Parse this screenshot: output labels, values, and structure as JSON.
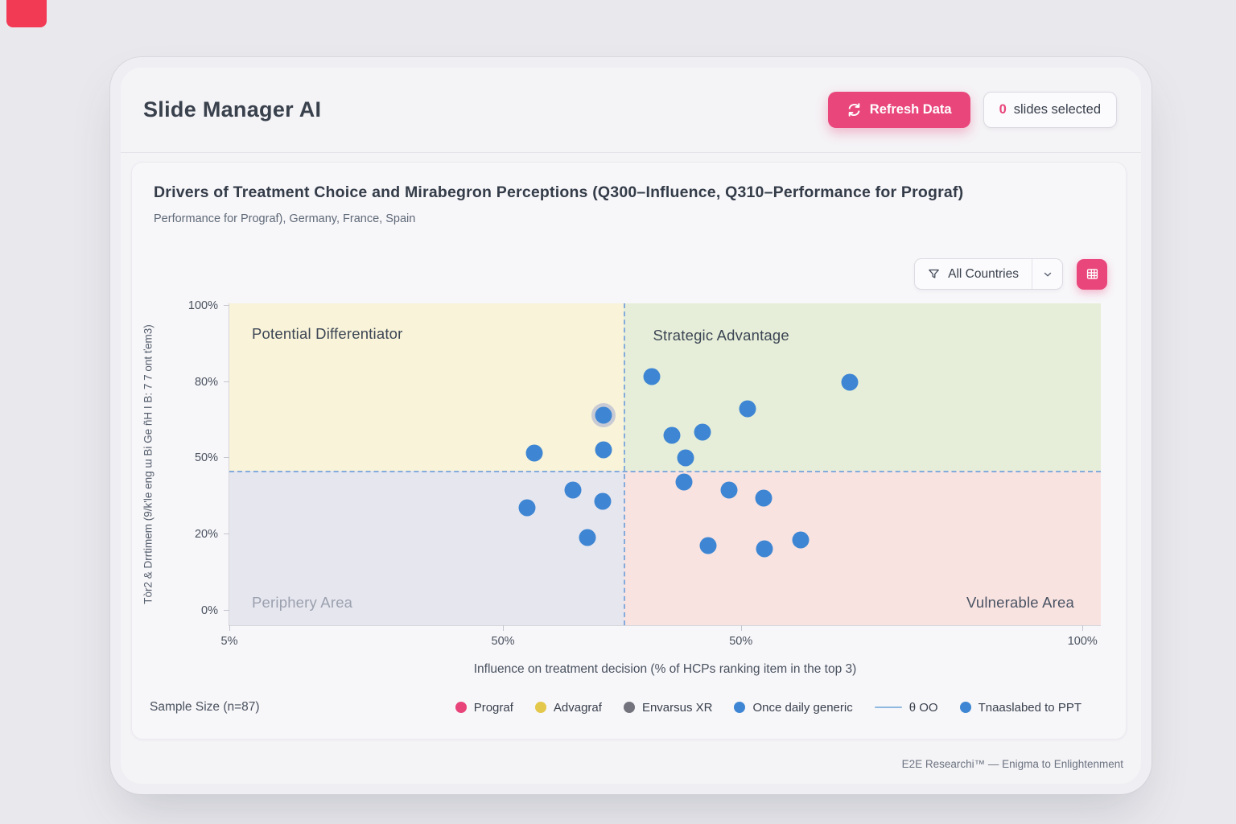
{
  "page": {
    "corner_accent_color": "#f23a55"
  },
  "header": {
    "title": "Slide Manager AI",
    "refresh_button": {
      "label": "Refresh Data",
      "color": "#e9477c"
    },
    "slides_badge": {
      "count": "0",
      "label": "slides selected",
      "count_color": "#e8447a"
    }
  },
  "chart_card": {
    "title": "Drivers of Treatment Choice and Mirabegron Perceptions (Q300–Influence, Q310–Performance for Prograf)",
    "subtitle": "Performance for Prograf), Germany, France, Spain",
    "filter": {
      "label": "All Countries"
    },
    "sample_size": "Sample Size (n=87)"
  },
  "chart_data": {
    "type": "scatter",
    "title": "Drivers of Treatment Choice and Mirabegron Perceptions (Q300–Influence, Q310–Performance for Prograf)",
    "xlabel": "Influence on treatment decision (% of HCPs ranking item in the top 3)",
    "ylabel": "Tòr2 & Drrtimem (9/k'le eng ɯ Bi Ge ñH I B: 7 7 ont ťem3)",
    "x_ticks": [
      {
        "label": "5%",
        "pos_pct": 0
      },
      {
        "label": "50%",
        "pos_pct": 31.4
      },
      {
        "label": "50%",
        "pos_pct": 58.7
      },
      {
        "label": "100%",
        "pos_pct": 97.9
      }
    ],
    "y_ticks": [
      {
        "label": "100%",
        "pos_pct": 99.3
      },
      {
        "label": "80%",
        "pos_pct": 75.6
      },
      {
        "label": "50%",
        "pos_pct": 51.9
      },
      {
        "label": "20%",
        "pos_pct": 28.2
      },
      {
        "label": "0%",
        "pos_pct": 4.5
      }
    ],
    "dividers": {
      "x_pct": 45.2,
      "y_pct_from_bottom": 48.1,
      "color": "#84abdb",
      "style": "dashed"
    },
    "quadrants": [
      {
        "label": "Potential Differentiator",
        "color": "#f8f3d9",
        "label_color": "#3d4654",
        "corner": "top-left"
      },
      {
        "label": "Strategic Advantage",
        "color": "#e6eed9",
        "label_color": "#3d4654",
        "corner": "top-right"
      },
      {
        "label": "Periphery Area",
        "color": "#e6e6ef",
        "label_color": "#9ba1ae",
        "corner": "bottom-left"
      },
      {
        "label": "Vulnerable Area",
        "color": "#f8e3e1",
        "label_color": "#4a5363",
        "corner": "bottom-right"
      }
    ],
    "point_color": "#3e86d3",
    "point_ring_color": "#c9cbd4",
    "points": [
      {
        "x_pct": 48.5,
        "y_pct": 77.3
      },
      {
        "x_pct": 71.2,
        "y_pct": 75.6
      },
      {
        "x_pct": 59.5,
        "y_pct": 67.3
      },
      {
        "x_pct": 42.9,
        "y_pct": 65.3,
        "ring": true
      },
      {
        "x_pct": 50.8,
        "y_pct": 59.1
      },
      {
        "x_pct": 54.3,
        "y_pct": 60.1
      },
      {
        "x_pct": 35.0,
        "y_pct": 53.6
      },
      {
        "x_pct": 42.9,
        "y_pct": 54.4
      },
      {
        "x_pct": 52.4,
        "y_pct": 52.1
      },
      {
        "x_pct": 52.2,
        "y_pct": 44.4
      },
      {
        "x_pct": 39.4,
        "y_pct": 42.1
      },
      {
        "x_pct": 57.3,
        "y_pct": 42.1
      },
      {
        "x_pct": 34.2,
        "y_pct": 36.4
      },
      {
        "x_pct": 42.8,
        "y_pct": 38.4
      },
      {
        "x_pct": 61.3,
        "y_pct": 39.4
      },
      {
        "x_pct": 41.1,
        "y_pct": 27.2
      },
      {
        "x_pct": 54.9,
        "y_pct": 24.7
      },
      {
        "x_pct": 61.4,
        "y_pct": 23.7
      },
      {
        "x_pct": 65.6,
        "y_pct": 26.4
      }
    ],
    "legend": [
      {
        "swatch": "dot",
        "color": "#e8447a",
        "label": "Prograf"
      },
      {
        "swatch": "dot",
        "color": "#e4c84b",
        "label": "Advagraf"
      },
      {
        "swatch": "dot",
        "color": "#73737d",
        "label": "Envarsus XR"
      },
      {
        "swatch": "dot",
        "color": "#3e86d3",
        "label": "Once daily generic"
      },
      {
        "swatch": "line",
        "color": "#8fb9e0",
        "label": "θ OO"
      },
      {
        "swatch": "dot",
        "color": "#3e86d3",
        "label": "Tnaaslabed to PPT"
      }
    ],
    "axis_ranges_note": "x axis ticks as printed: 5%, 50%, 50%, 100%; y axis ticks: 0–100%"
  },
  "footer": {
    "brand": "E2E Researchi™ — Enigma to Enlightenment"
  }
}
